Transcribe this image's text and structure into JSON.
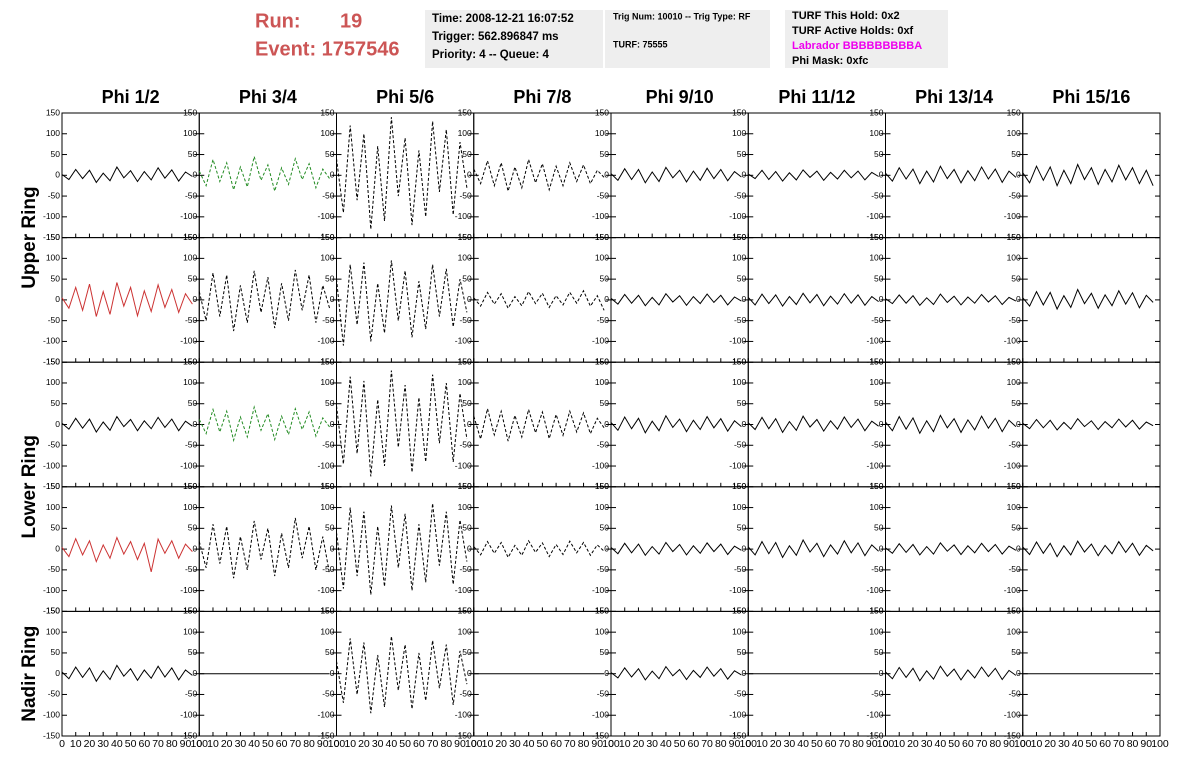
{
  "header": {
    "run_label": "Run:",
    "run": "19",
    "event": "Event: 1757546",
    "info": [
      "Time: 2008-12-21 16:07:52",
      "Trigger: 562.896847 ms",
      "Priority: 4 -- Queue: 4"
    ],
    "trig": [
      "Trig Num: 10010 -- Trig Type: RF",
      "TURF: 75555"
    ],
    "turf": [
      "TURF This Hold: 0x2",
      "TURF Active Holds: 0xf",
      "Labrador BBBBBBBBBA",
      "Phi Mask: 0xfc"
    ]
  },
  "chart_data": {
    "type": "line",
    "columns": [
      "Phi 1/2",
      "Phi 3/4",
      "Phi 5/6",
      "Phi 7/8",
      "Phi 9/10",
      "Phi 11/12",
      "Phi 13/14",
      "Phi 15/16"
    ],
    "rows": [
      "Upper Ring",
      "Lower Ring",
      "Nadir Ring"
    ],
    "xlim": [
      0,
      100
    ],
    "xticks": [
      0,
      10,
      20,
      30,
      40,
      50,
      60,
      70,
      80,
      90,
      100
    ],
    "ylim": [
      -150,
      150
    ],
    "yticks": [
      -150,
      -100,
      -50,
      0,
      50,
      100,
      150
    ],
    "x": [
      0,
      5,
      10,
      15,
      20,
      25,
      30,
      35,
      40,
      45,
      50,
      55,
      60,
      65,
      70,
      75,
      80,
      85,
      90,
      95
    ],
    "panels": [
      {
        "color": "#000000",
        "dashed": false,
        "values": [
          2,
          -10,
          14,
          -8,
          12,
          -17,
          5,
          -13,
          20,
          -6,
          11,
          -15,
          9,
          -11,
          18,
          -7,
          13,
          -14,
          8,
          -3
        ]
      },
      {
        "color": "#228b22",
        "dashed": true,
        "values": [
          10,
          -25,
          38,
          -15,
          30,
          -35,
          20,
          -28,
          45,
          -12,
          25,
          -38,
          18,
          -22,
          40,
          -10,
          28,
          -30,
          15,
          -8
        ]
      },
      {
        "color": "#000000",
        "dashed": true,
        "values": [
          40,
          -90,
          120,
          -60,
          100,
          -130,
          70,
          -110,
          140,
          -50,
          90,
          -120,
          60,
          -100,
          130,
          -40,
          110,
          -95,
          80,
          -30
        ]
      },
      {
        "color": "#000000",
        "dashed": true,
        "values": [
          15,
          -20,
          35,
          -25,
          30,
          -38,
          20,
          -30,
          38,
          -18,
          28,
          -35,
          22,
          -25,
          30,
          -15,
          25,
          -20,
          12,
          -5
        ]
      },
      {
        "color": "#000000",
        "dashed": false,
        "values": [
          4,
          -12,
          16,
          -10,
          14,
          -18,
          8,
          -15,
          19,
          -6,
          12,
          -16,
          10,
          -12,
          17,
          -8,
          14,
          -13,
          9,
          -4
        ]
      },
      {
        "color": "#000000",
        "dashed": false,
        "values": [
          3,
          -8,
          12,
          -10,
          9,
          -14,
          6,
          -11,
          13,
          -5,
          10,
          -12,
          7,
          -9,
          12,
          -6,
          10,
          -11,
          7,
          -3
        ]
      },
      {
        "color": "#000000",
        "dashed": false,
        "values": [
          5,
          -14,
          18,
          -9,
          15,
          -20,
          10,
          -16,
          22,
          -8,
          14,
          -18,
          11,
          -13,
          20,
          -9,
          15,
          -17,
          10,
          -5
        ]
      },
      {
        "color": "#000000",
        "dashed": false,
        "values": [
          6,
          -18,
          22,
          -12,
          20,
          -25,
          12,
          -20,
          26,
          -10,
          18,
          -22,
          14,
          -16,
          24,
          -11,
          18,
          -20,
          12,
          -25
        ]
      },
      {
        "color": "#cc3333",
        "dashed": false,
        "values": [
          5,
          -20,
          30,
          -25,
          38,
          -40,
          20,
          -35,
          42,
          -15,
          30,
          -38,
          22,
          -28,
          36,
          -18,
          25,
          -30,
          15,
          -10
        ]
      },
      {
        "color": "#000000",
        "dashed": true,
        "values": [
          20,
          -50,
          65,
          -40,
          60,
          -75,
          35,
          -55,
          70,
          -30,
          55,
          -68,
          40,
          -50,
          72,
          -25,
          60,
          -55,
          35,
          -20
        ]
      },
      {
        "color": "#000000",
        "dashed": true,
        "values": [
          50,
          -110,
          85,
          -60,
          90,
          -100,
          40,
          -80,
          95,
          -50,
          70,
          -90,
          45,
          -70,
          85,
          -40,
          75,
          -65,
          50,
          -30
        ]
      },
      {
        "color": "#000000",
        "dashed": true,
        "values": [
          5,
          -15,
          18,
          -10,
          15,
          -20,
          8,
          -14,
          20,
          -9,
          16,
          -18,
          10,
          -12,
          18,
          -8,
          22,
          -15,
          10,
          -25
        ]
      },
      {
        "color": "#000000",
        "dashed": false,
        "values": [
          4,
          -10,
          13,
          -8,
          11,
          -14,
          6,
          -12,
          15,
          -5,
          10,
          -13,
          8,
          -9,
          14,
          -6,
          11,
          -12,
          7,
          -3
        ]
      },
      {
        "color": "#000000",
        "dashed": false,
        "values": [
          6,
          -12,
          14,
          -9,
          12,
          -15,
          8,
          -11,
          16,
          -7,
          13,
          -14,
          9,
          -10,
          15,
          -8,
          12,
          -13,
          8,
          -4
        ]
      },
      {
        "color": "#000000",
        "dashed": false,
        "values": [
          3,
          -9,
          12,
          -8,
          10,
          -13,
          5,
          -11,
          14,
          -6,
          9,
          -12,
          7,
          -8,
          13,
          -5,
          10,
          -11,
          6,
          -3
        ]
      },
      {
        "color": "#000000",
        "dashed": false,
        "values": [
          5,
          -15,
          20,
          -12,
          18,
          -22,
          10,
          -18,
          25,
          -9,
          16,
          -20,
          12,
          -14,
          22,
          -10,
          17,
          -19,
          11,
          -6
        ]
      },
      {
        "color": "#000000",
        "dashed": false,
        "values": [
          3,
          -11,
          15,
          -9,
          13,
          -18,
          6,
          -14,
          19,
          -5,
          12,
          -15,
          9,
          -10,
          17,
          -7,
          13,
          -15,
          8,
          -4
        ]
      },
      {
        "color": "#228b22",
        "dashed": true,
        "values": [
          12,
          -22,
          36,
          -18,
          32,
          -38,
          18,
          -30,
          42,
          -14,
          26,
          -36,
          20,
          -24,
          38,
          -12,
          30,
          -28,
          16,
          -6
        ]
      },
      {
        "color": "#000000",
        "dashed": true,
        "values": [
          45,
          -95,
          115,
          -70,
          105,
          -125,
          60,
          -100,
          130,
          -55,
          95,
          -115,
          65,
          -90,
          120,
          -45,
          100,
          -90,
          75,
          -35
        ]
      },
      {
        "color": "#000000",
        "dashed": true,
        "values": [
          20,
          -35,
          38,
          -25,
          32,
          -40,
          22,
          -30,
          36,
          -20,
          30,
          -34,
          24,
          -26,
          32,
          -18,
          28,
          -22,
          15,
          -8
        ]
      },
      {
        "color": "#000000",
        "dashed": false,
        "values": [
          5,
          -14,
          18,
          -10,
          15,
          -20,
          8,
          -15,
          21,
          -7,
          13,
          -17,
          10,
          -12,
          19,
          -8,
          14,
          -16,
          9,
          -5
        ]
      },
      {
        "color": "#000000",
        "dashed": false,
        "values": [
          4,
          -12,
          17,
          -10,
          14,
          -19,
          7,
          -14,
          20,
          -6,
          12,
          -16,
          9,
          -11,
          18,
          -7,
          13,
          -15,
          8,
          -4
        ]
      },
      {
        "color": "#000000",
        "dashed": false,
        "values": [
          6,
          -15,
          19,
          -11,
          16,
          -21,
          9,
          -17,
          22,
          -8,
          14,
          -19,
          11,
          -13,
          20,
          -9,
          15,
          -17,
          10,
          -5
        ]
      },
      {
        "color": "#000000",
        "dashed": false,
        "values": [
          3,
          -10,
          12,
          -8,
          10,
          -13,
          5,
          -11,
          14,
          -5,
          9,
          -12,
          7,
          -8,
          13,
          -6,
          10,
          -11,
          6,
          -3
        ]
      },
      {
        "color": "#cc3333",
        "dashed": false,
        "values": [
          4,
          -18,
          25,
          -14,
          20,
          -30,
          10,
          -22,
          28,
          -12,
          18,
          -25,
          14,
          -55,
          24,
          -10,
          20,
          -22,
          12,
          -6
        ]
      },
      {
        "color": "#000000",
        "dashed": true,
        "values": [
          18,
          -45,
          60,
          -35,
          55,
          -70,
          30,
          -50,
          68,
          -25,
          50,
          -65,
          38,
          -45,
          75,
          -22,
          55,
          -50,
          30,
          -60
        ]
      },
      {
        "color": "#000000",
        "dashed": true,
        "values": [
          40,
          -95,
          100,
          -65,
          90,
          -110,
          55,
          -90,
          105,
          -45,
          85,
          -100,
          60,
          -80,
          110,
          -40,
          90,
          -85,
          70,
          -30
        ]
      },
      {
        "color": "#000000",
        "dashed": true,
        "values": [
          6,
          -14,
          18,
          -10,
          16,
          -20,
          9,
          -15,
          20,
          -8,
          15,
          -18,
          11,
          -13,
          19,
          -9,
          16,
          -15,
          10,
          -5
        ]
      },
      {
        "color": "#000000",
        "dashed": false,
        "values": [
          4,
          -11,
          14,
          -9,
          12,
          -15,
          6,
          -12,
          16,
          -6,
          11,
          -14,
          8,
          -10,
          15,
          -6,
          12,
          -13,
          7,
          -3
        ]
      },
      {
        "color": "#000000",
        "dashed": false,
        "values": [
          5,
          -14,
          18,
          -11,
          16,
          -20,
          8,
          -15,
          22,
          -7,
          14,
          -18,
          10,
          -12,
          20,
          -9,
          15,
          -16,
          10,
          -5
        ]
      },
      {
        "color": "#000000",
        "dashed": false,
        "values": [
          3,
          -10,
          13,
          -8,
          11,
          -14,
          6,
          -12,
          15,
          -5,
          10,
          -13,
          8,
          -9,
          14,
          -6,
          11,
          -12,
          7,
          -3
        ]
      },
      {
        "color": "#000000",
        "dashed": false,
        "values": [
          5,
          -13,
          17,
          -10,
          14,
          -18,
          8,
          -14,
          19,
          -7,
          12,
          -16,
          9,
          -11,
          18,
          -8,
          14,
          -15,
          9,
          -4
        ]
      },
      {
        "color": "#000000",
        "dashed": false,
        "values": [
          4,
          -12,
          16,
          -9,
          14,
          -18,
          7,
          -14,
          20,
          -6,
          12,
          -16,
          9,
          -11,
          18,
          -8,
          14,
          -15,
          9,
          -4
        ]
      },
      {
        "color": "#000000",
        "dashed": false,
        "values": [
          0,
          0,
          0,
          0,
          0,
          0,
          0,
          0,
          0,
          0,
          0,
          0,
          0,
          0,
          0,
          0,
          0,
          0,
          0,
          0
        ]
      },
      {
        "color": "#000000",
        "dashed": true,
        "values": [
          30,
          -70,
          85,
          -50,
          75,
          -95,
          45,
          -80,
          90,
          -40,
          70,
          -85,
          50,
          -65,
          80,
          -35,
          70,
          -75,
          55,
          -25
        ]
      },
      {
        "color": "#000000",
        "dashed": false,
        "values": [
          0,
          0,
          0,
          0,
          0,
          0,
          0,
          0,
          0,
          0,
          0,
          0,
          0,
          0,
          0,
          0,
          0,
          0,
          0,
          0
        ]
      },
      {
        "color": "#000000",
        "dashed": false,
        "values": [
          3,
          -10,
          14,
          -8,
          12,
          -15,
          6,
          -12,
          17,
          -5,
          10,
          -14,
          8,
          -9,
          16,
          -6,
          12,
          -13,
          7,
          -3
        ]
      },
      {
        "color": "#000000",
        "dashed": false,
        "values": [
          0,
          0,
          0,
          0,
          0,
          0,
          0,
          0,
          0,
          0,
          0,
          0,
          0,
          0,
          0,
          0,
          0,
          0,
          0,
          0
        ]
      },
      {
        "color": "#000000",
        "dashed": false,
        "values": [
          4,
          -12,
          15,
          -9,
          13,
          -17,
          7,
          -13,
          18,
          -6,
          11,
          -15,
          9,
          -10,
          16,
          -7,
          13,
          -14,
          8,
          -4
        ]
      },
      {
        "color": "#000000",
        "dashed": false,
        "values": [
          0,
          0,
          0,
          0,
          0,
          0,
          0,
          0,
          0,
          0,
          0,
          0,
          0,
          0,
          0,
          0,
          0,
          0,
          0,
          0
        ]
      }
    ]
  }
}
